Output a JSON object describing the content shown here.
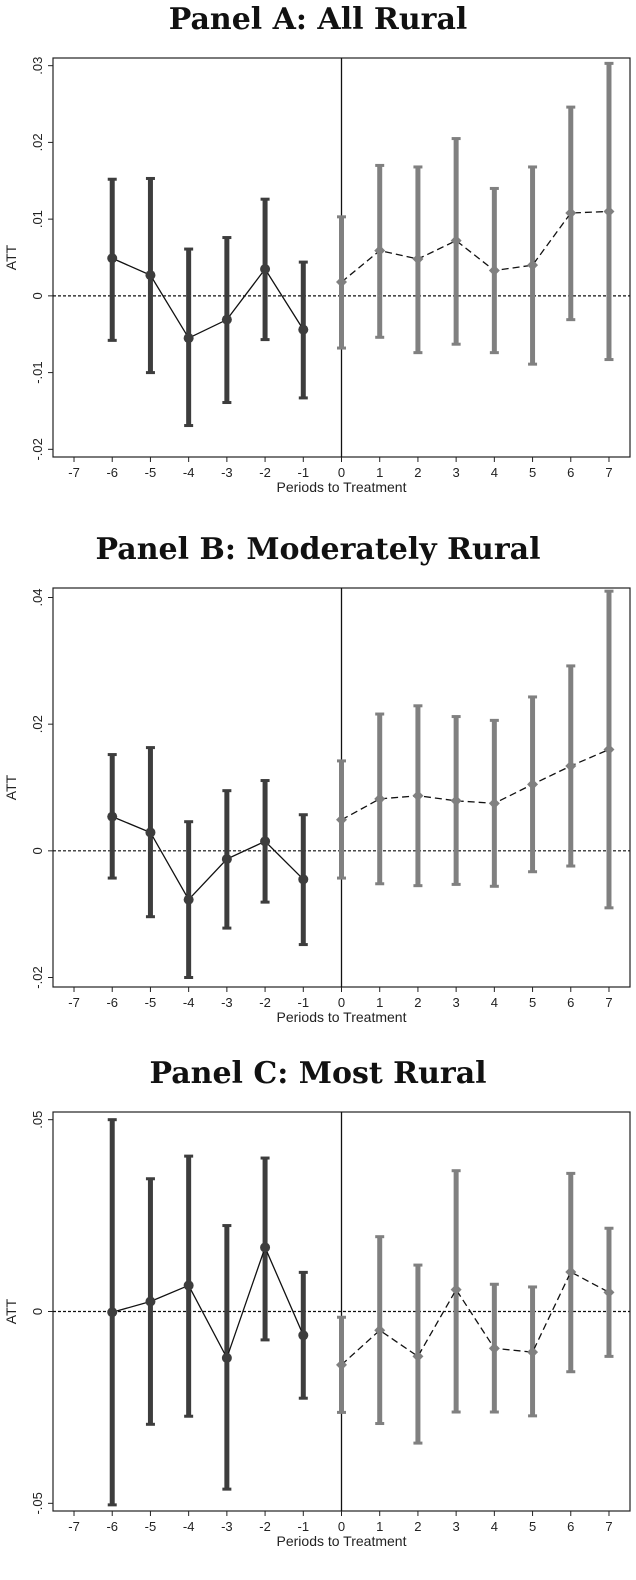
{
  "chart_data": [
    {
      "type": "scatter",
      "title": "Panel A: All Rural",
      "xlabel": "Periods to Treatment",
      "ylabel": "ATT",
      "xlim": [
        -7,
        7
      ],
      "xticks": [
        -7,
        -6,
        -5,
        -4,
        -3,
        -2,
        -1,
        0,
        1,
        2,
        3,
        4,
        5,
        6,
        7
      ],
      "ylim": [
        -0.021,
        0.031
      ],
      "yticks": [
        -0.02,
        -0.01,
        0,
        0.01,
        0.02,
        0.03
      ],
      "ytick_labels": [
        "-.02",
        "-.01",
        "0",
        ".01",
        ".02",
        ".03"
      ],
      "reference_line_y": 0,
      "treatment_line_x": 0,
      "series": [
        {
          "x": [
            -6,
            -5,
            -4,
            -3,
            -2,
            -1
          ],
          "y": [
            0.0049,
            0.0027,
            -0.0055,
            -0.0031,
            0.0035,
            -0.0044
          ],
          "ci_low": [
            -0.0058,
            -0.01,
            -0.0169,
            -0.0139,
            -0.0057,
            -0.0133
          ],
          "ci_high": [
            0.0152,
            0.0153,
            0.0061,
            0.0076,
            0.0126,
            0.0044
          ],
          "color": "#3d3d3d",
          "marker": "circle",
          "line": "solid"
        },
        {
          "x": [
            0,
            1,
            2,
            3,
            4,
            5,
            6,
            7
          ],
          "y": [
            0.0018,
            0.0059,
            0.0048,
            0.0072,
            0.0033,
            0.004,
            0.0108,
            0.011
          ],
          "ci_low": [
            -0.0068,
            -0.0054,
            -0.0074,
            -0.0063,
            -0.0074,
            -0.0089,
            -0.0031,
            -0.0083
          ],
          "ci_high": [
            0.0103,
            0.017,
            0.0168,
            0.0205,
            0.014,
            0.0168,
            0.0246,
            0.0303
          ],
          "color": "#808080",
          "marker": "diamond",
          "line": "dashed"
        }
      ]
    },
    {
      "type": "scatter",
      "title": "Panel B: Moderately Rural",
      "xlabel": "Periods to Treatment",
      "ylabel": "ATT",
      "xlim": [
        -7,
        7
      ],
      "xticks": [
        -7,
        -6,
        -5,
        -4,
        -3,
        -2,
        -1,
        0,
        1,
        2,
        3,
        4,
        5,
        6,
        7
      ],
      "ylim": [
        -0.0215,
        0.0415
      ],
      "yticks": [
        -0.02,
        0,
        0.02,
        0.04
      ],
      "ytick_labels": [
        "-.02",
        "0",
        ".02",
        ".04"
      ],
      "reference_line_y": 0,
      "treatment_line_x": 0,
      "series": [
        {
          "x": [
            -6,
            -5,
            -4,
            -3,
            -2,
            -1
          ],
          "y": [
            0.0054,
            0.0029,
            -0.0077,
            -0.0013,
            0.0015,
            -0.0045
          ],
          "ci_low": [
            -0.0043,
            -0.0104,
            -0.02,
            -0.0122,
            -0.0081,
            -0.0148
          ],
          "ci_high": [
            0.0152,
            0.0163,
            0.0046,
            0.0095,
            0.0111,
            0.0057
          ],
          "color": "#3d3d3d",
          "marker": "circle",
          "line": "solid"
        },
        {
          "x": [
            0,
            1,
            2,
            3,
            4,
            5,
            6,
            7
          ],
          "y": [
            0.0049,
            0.0082,
            0.0087,
            0.0079,
            0.0075,
            0.0105,
            0.0134,
            0.016
          ],
          "ci_low": [
            -0.0043,
            -0.0052,
            -0.0055,
            -0.0053,
            -0.0056,
            -0.0033,
            -0.0024,
            -0.009
          ],
          "ci_high": [
            0.0142,
            0.0216,
            0.0229,
            0.0212,
            0.0206,
            0.0243,
            0.0292,
            0.041
          ],
          "color": "#808080",
          "marker": "diamond",
          "line": "dashed"
        }
      ]
    },
    {
      "type": "scatter",
      "title": "Panel C: Most Rural",
      "xlabel": "Periods to Treatment",
      "ylabel": "ATT",
      "xlim": [
        -7,
        7
      ],
      "xticks": [
        -7,
        -6,
        -5,
        -4,
        -3,
        -2,
        -1,
        0,
        1,
        2,
        3,
        4,
        5,
        6,
        7
      ],
      "ylim": [
        -0.052,
        0.052
      ],
      "yticks": [
        -0.05,
        0,
        0.05
      ],
      "ytick_labels": [
        "-.05",
        "0",
        ".05"
      ],
      "reference_line_y": 0,
      "treatment_line_x": 0,
      "series": [
        {
          "x": [
            -6,
            -5,
            -4,
            -3,
            -2,
            -1
          ],
          "y": [
            -0.0002,
            0.0026,
            0.0068,
            -0.0121,
            0.0167,
            -0.0062
          ],
          "ci_low": [
            -0.0504,
            -0.0294,
            -0.0273,
            -0.0463,
            -0.0074,
            -0.0226
          ],
          "ci_high": [
            0.05,
            0.0346,
            0.0405,
            0.0224,
            0.04,
            0.0102
          ],
          "color": "#3d3d3d",
          "marker": "circle",
          "line": "solid"
        },
        {
          "x": [
            0,
            1,
            2,
            3,
            4,
            5,
            6,
            7
          ],
          "y": [
            -0.0139,
            -0.0049,
            -0.0117,
            0.0057,
            -0.0096,
            -0.0106,
            0.0103,
            0.005
          ],
          "ci_low": [
            -0.0263,
            -0.0292,
            -0.0343,
            -0.0262,
            -0.0262,
            -0.0272,
            -0.0157,
            -0.0117
          ],
          "ci_high": [
            -0.0015,
            0.0195,
            0.0121,
            0.0367,
            0.0071,
            0.0064,
            0.036,
            0.0217
          ],
          "color": "#808080",
          "marker": "diamond",
          "line": "dashed"
        }
      ]
    }
  ]
}
